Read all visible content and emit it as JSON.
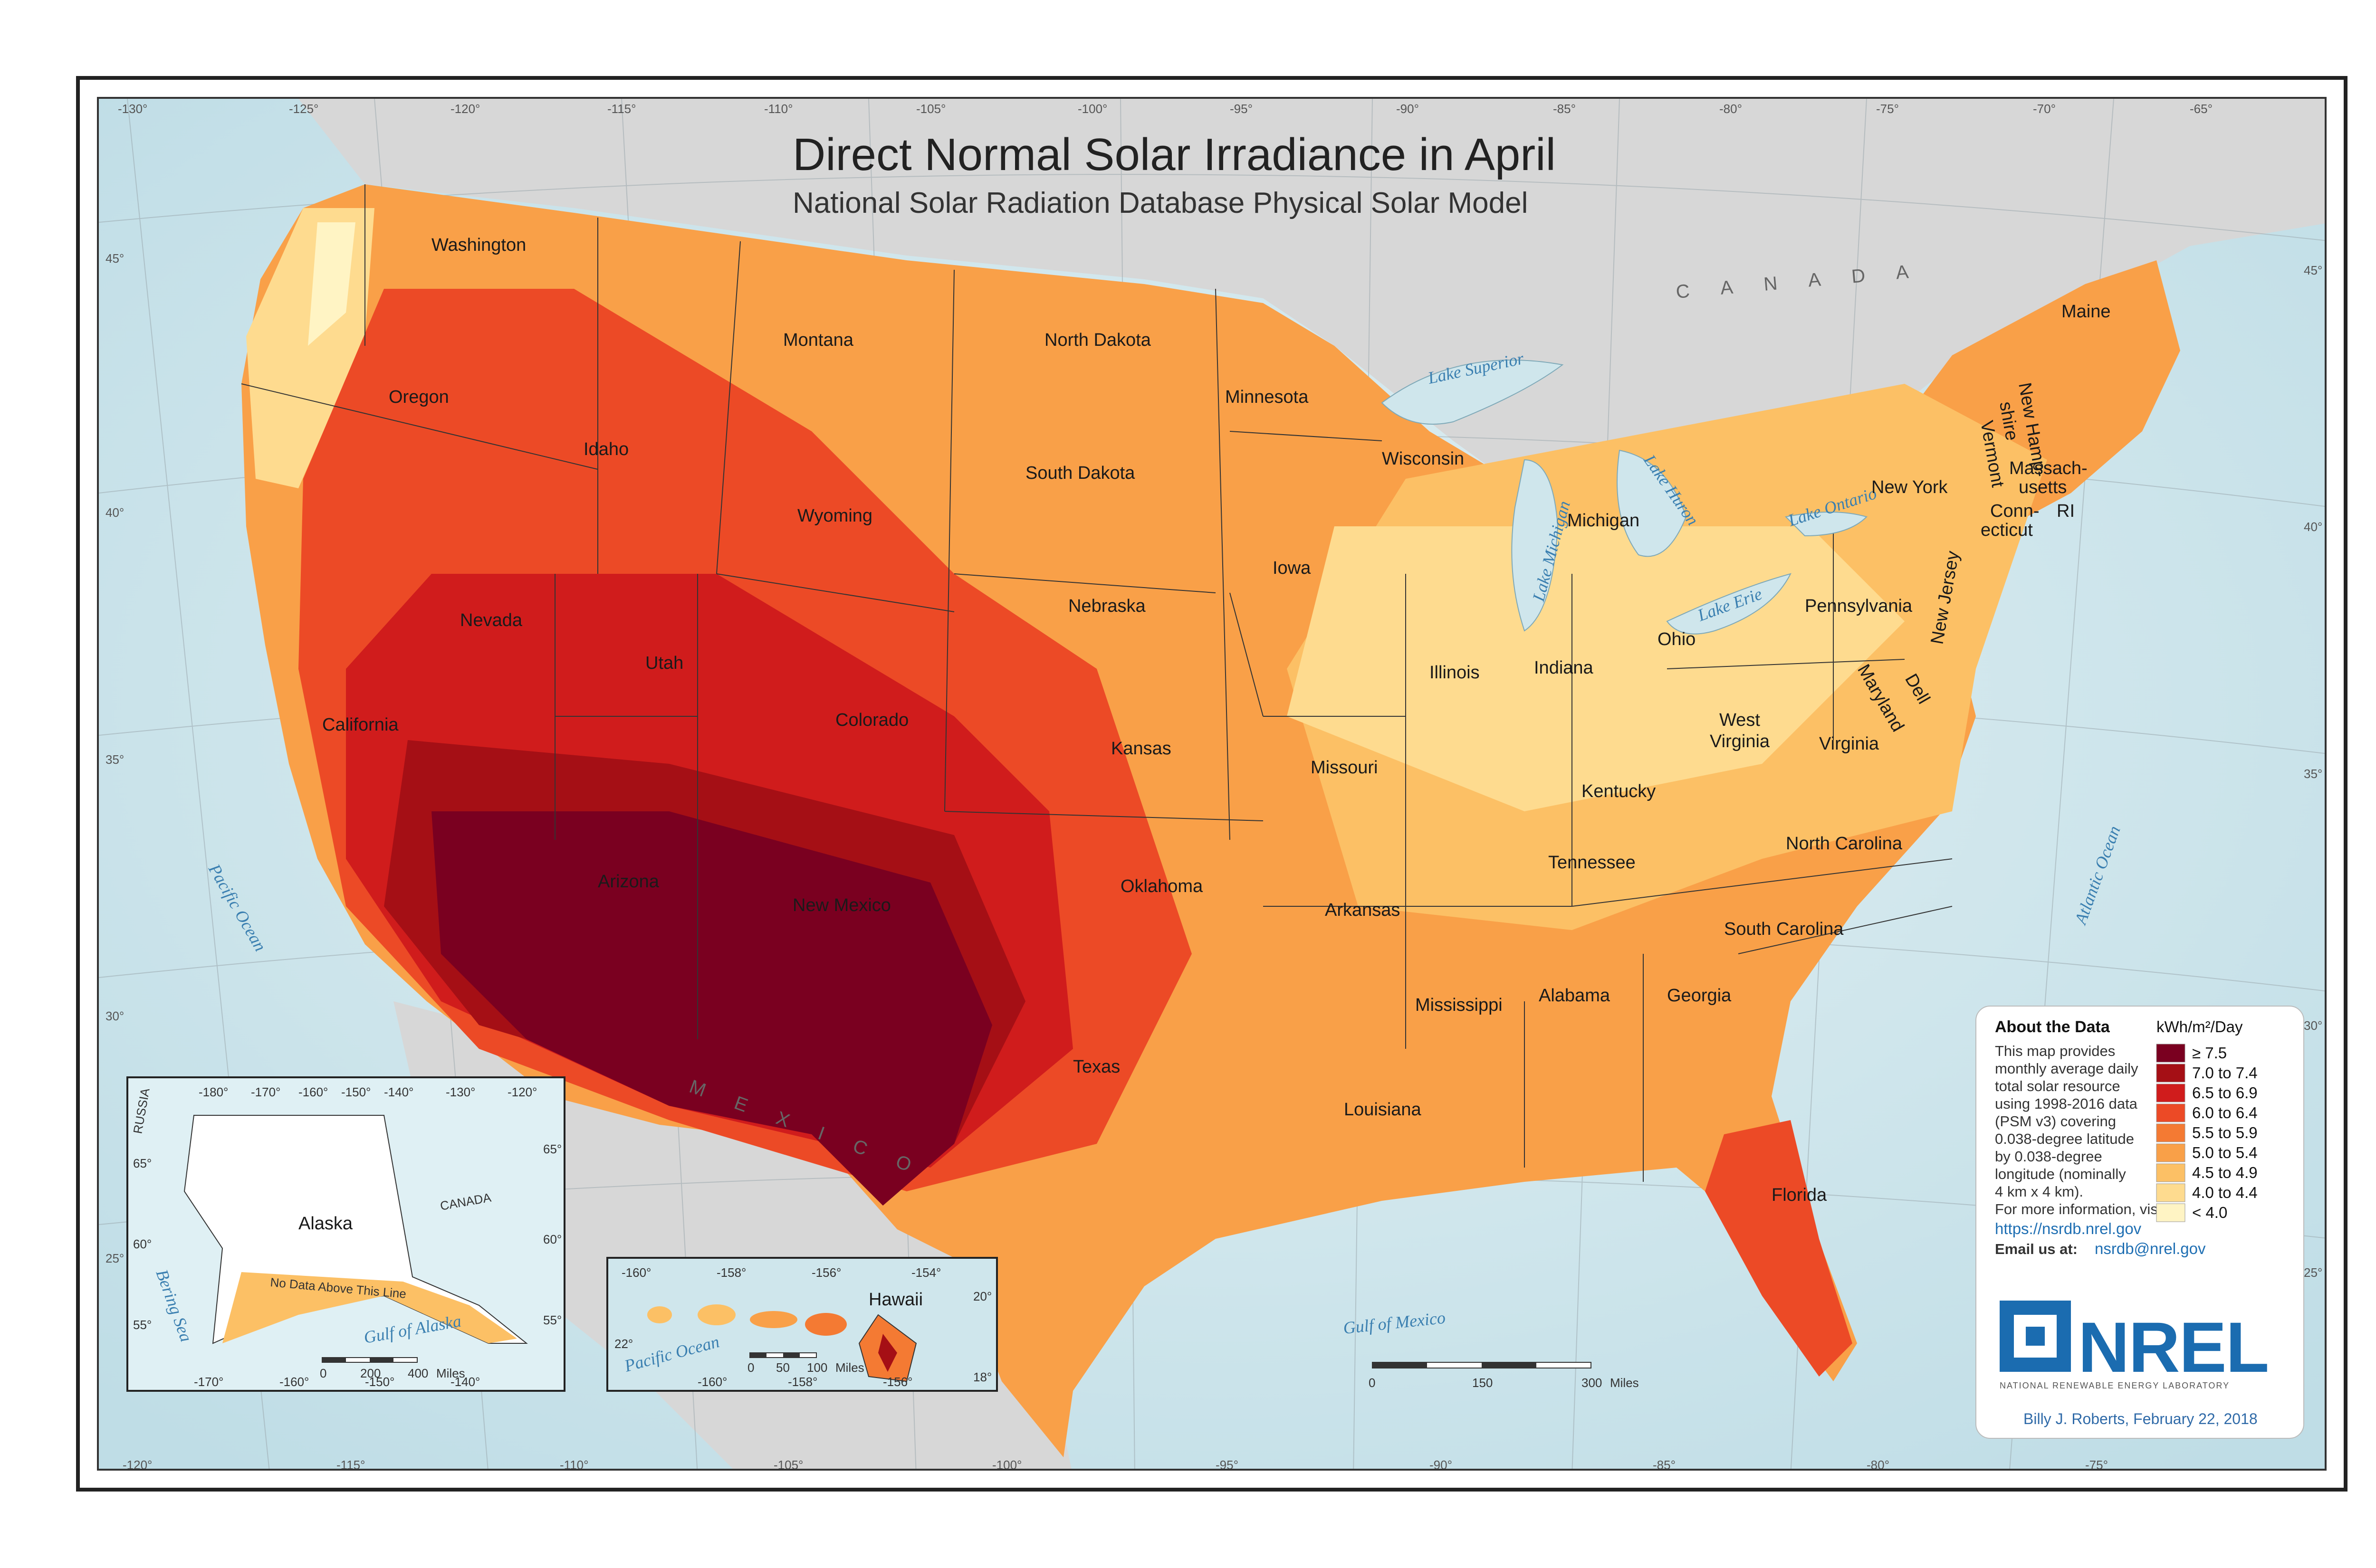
{
  "title": "Direct Normal Solar Irradiance in April",
  "subtitle": "National Solar Radiation Database Physical Solar Model",
  "top_longitudes": [
    "-130°",
    "-125°",
    "-120°",
    "-115°",
    "-110°",
    "-105°",
    "-100°",
    "-95°",
    "-90°",
    "-85°",
    "-80°",
    "-75°",
    "-70°",
    "-65°"
  ],
  "bottom_longitudes": [
    "-120°",
    "-115°",
    "-110°",
    "-105°",
    "-100°",
    "-95°",
    "-90°",
    "-85°",
    "-80°",
    "-75°"
  ],
  "left_latitudes": [
    "45°",
    "40°",
    "35°",
    "30°",
    "25°"
  ],
  "right_latitudes": [
    "45°",
    "40°",
    "35°",
    "30°",
    "25°"
  ],
  "countries": {
    "canada": "C A N A D A",
    "mexico": "M E X I C O"
  },
  "water_labels": {
    "pacific": "Pacific Ocean",
    "atlantic": "Atlantic Ocean",
    "gulf": "Gulf of Mexico",
    "lake_superior": "Lake Superior",
    "lake_michigan": "Lake Michigan",
    "lake_huron": "Lake Huron",
    "lake_erie": "Lake Erie",
    "lake_ontario": "Lake Ontario"
  },
  "states": {
    "washington": "Washington",
    "oregon": "Oregon",
    "california": "California",
    "nevada": "Nevada",
    "idaho": "Idaho",
    "montana": "Montana",
    "wyoming": "Wyoming",
    "utah": "Utah",
    "arizona": "Arizona",
    "colorado": "Colorado",
    "new_mexico": "New Mexico",
    "north_dakota": "North Dakota",
    "south_dakota": "South Dakota",
    "nebraska": "Nebraska",
    "kansas": "Kansas",
    "oklahoma": "Oklahoma",
    "texas": "Texas",
    "minnesota": "Minnesota",
    "iowa": "Iowa",
    "missouri": "Missouri",
    "arkansas": "Arkansas",
    "louisiana": "Louisiana",
    "wisconsin": "Wisconsin",
    "illinois": "Illinois",
    "michigan": "Michigan",
    "indiana": "Indiana",
    "ohio": "Ohio",
    "kentucky": "Kentucky",
    "tennessee": "Tennessee",
    "mississippi": "Mississippi",
    "alabama": "Alabama",
    "georgia": "Georgia",
    "florida": "Florida",
    "south_carolina": "South Carolina",
    "north_carolina": "North Carolina",
    "virginia": "Virginia",
    "west_virginia_1": "West",
    "west_virginia_2": "Virginia",
    "pennsylvania": "Pennsylvania",
    "new_york": "New York",
    "maryland": "Maryland",
    "delaware": "Dell",
    "new_jersey": "New Jersey",
    "connecticut_1": "Conn-",
    "connecticut_2": "ecticut",
    "ri": "RI",
    "massachusetts_1": "Massach-",
    "massachusetts_2": "usetts",
    "vermont": "Vermont",
    "nh_1": "New Hamp-",
    "nh_2": "shire",
    "maine": "Maine"
  },
  "about": {
    "heading": "About the Data",
    "lines": [
      "This map provides",
      "monthly average daily",
      "total solar resource",
      "using 1998-2016 data",
      "(PSM v3) covering",
      "0.038-degree latitude",
      "by 0.038-degree",
      "longitude (nominally",
      "4 km x 4 km).",
      "For more information, visit:"
    ],
    "link": "https://nsrdb.nrel.gov",
    "email_label": "Email us at:",
    "email": "nsrdb@nrel.gov"
  },
  "legend": {
    "unit": "kWh/m²/Day",
    "classes": [
      {
        "label": "≥ 7.5",
        "color": "#7a0020"
      },
      {
        "label": "7.0 to 7.4",
        "color": "#a50f15"
      },
      {
        "label": "6.5 to 6.9",
        "color": "#d01c1c"
      },
      {
        "label": "6.0 to 6.4",
        "color": "#ec4a26"
      },
      {
        "label": "5.5 to 5.9",
        "color": "#f47a33"
      },
      {
        "label": "5.0 to 5.4",
        "color": "#f9a048"
      },
      {
        "label": "4.5 to 4.9",
        "color": "#fcc065"
      },
      {
        "label": "4.0 to 4.4",
        "color": "#fedb8f"
      },
      {
        "label": "< 4.0",
        "color": "#fff4c4"
      }
    ]
  },
  "alaska_inset": {
    "name": "Alaska",
    "note": "No Data Above This Line",
    "russia": "RUSSIA",
    "canada": "CANADA",
    "bering": "Bering Sea",
    "gulf": "Gulf of Alaska",
    "top_lons": [
      "-180°",
      "-170°",
      "-160°",
      "-150°",
      "-140°",
      "-130°",
      "-120°"
    ],
    "bottom_lons": [
      "-170°",
      "-160°",
      "-150°",
      "-140°"
    ],
    "lats": [
      "65°",
      "60°",
      "55°"
    ],
    "right_lats": [
      "65°",
      "60°",
      "55°"
    ],
    "scale": {
      "ticks": [
        "0",
        "200",
        "400"
      ],
      "unit": "Miles"
    }
  },
  "hawaii_inset": {
    "name": "Hawaii",
    "pacific": "Pacific Ocean",
    "top_lons": [
      "-160°",
      "-158°",
      "-156°",
      "-154°"
    ],
    "bottom_lons": [
      "-160°",
      "-158°",
      "-156°"
    ],
    "lats": [
      "22°"
    ],
    "right_lats": [
      "20°",
      "18°"
    ],
    "scale": {
      "ticks": [
        "0",
        "50",
        "100"
      ],
      "unit": "Miles"
    }
  },
  "scale_bar": {
    "ticks": [
      "0",
      "150",
      "300"
    ],
    "unit": "Miles"
  },
  "logo": {
    "text": "NREL",
    "subtitle": "NATIONAL RENEWABLE ENERGY LABORATORY"
  },
  "credit": "Billy J. Roberts,  February 22, 2018"
}
